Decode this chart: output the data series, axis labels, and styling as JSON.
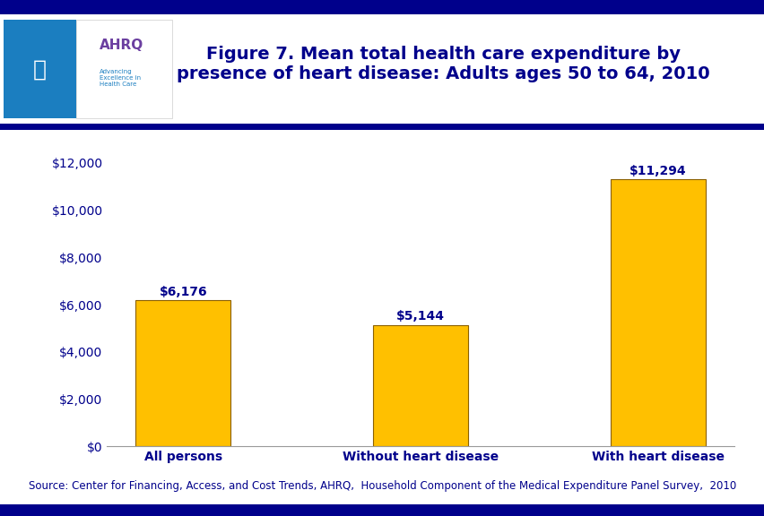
{
  "categories": [
    "All persons",
    "Without heart disease",
    "With heart disease"
  ],
  "values": [
    6176,
    5144,
    11294
  ],
  "bar_labels": [
    "$6,176",
    "$5,144",
    "$11,294"
  ],
  "bar_color": "#FFC000",
  "bar_edgecolor": "#8B6000",
  "title_line1": "Figure 7. Mean total health care expenditure by",
  "title_line2": "presence of heart disease: Adults ages 50 to 64, 2010",
  "title_color": "#00008B",
  "title_fontsize": 14,
  "ylim": [
    0,
    13000
  ],
  "yticks": [
    0,
    2000,
    4000,
    6000,
    8000,
    10000,
    12000
  ],
  "ytick_labels": [
    "$0",
    "$2,000",
    "$4,000",
    "$6,000",
    "$8,000",
    "$10,000",
    "$12,000"
  ],
  "axis_color": "#00008B",
  "tick_label_fontsize": 10,
  "bar_label_fontsize": 10,
  "category_fontsize": 10,
  "source_text": "Source: Center for Financing, Access, and Cost Trends, AHRQ,  Household Component of the Medical Expenditure Panel Survey,  2010",
  "source_fontsize": 8.5,
  "background_color": "#FFFFFF",
  "top_border_color": "#00008B",
  "bottom_border_color": "#00008B",
  "blue_line_color": "#00008B",
  "hhs_bg_color": "#1B7EC0",
  "ahrq_bg_color": "#FFFFFF",
  "ahrq_text_color": "#6B3FA0",
  "ahrq_sub_color": "#1B7EC0"
}
